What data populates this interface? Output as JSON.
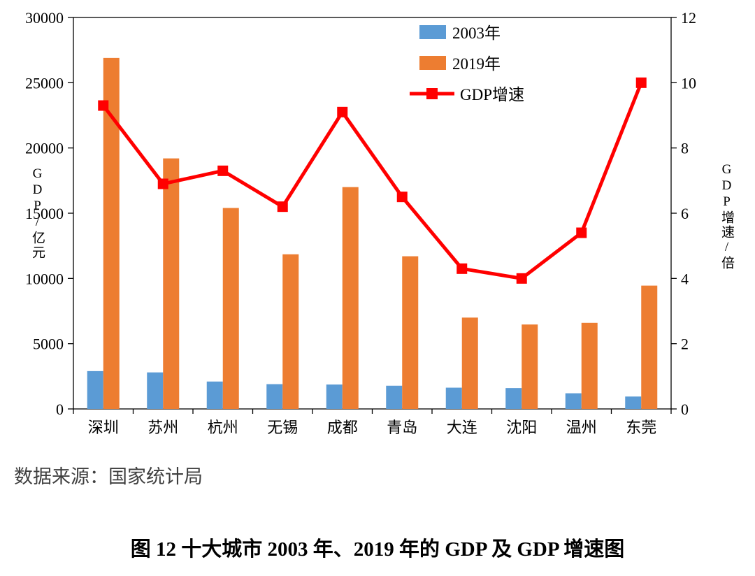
{
  "source_text": "数据来源：国家统计局",
  "caption": "图 12 十大城市 2003 年、2019 年的 GDP 及 GDP 增速图",
  "chart_data": {
    "type": "bar",
    "subtype": "grouped bars with overlaid line on secondary axis",
    "categories": [
      "深圳",
      "苏州",
      "杭州",
      "无锡",
      "成都",
      "青岛",
      "大连",
      "沈阳",
      "温州",
      "东莞"
    ],
    "series": [
      {
        "name": "2003年",
        "type": "bar",
        "axis": "left",
        "color": "#5B9BD5",
        "values": [
          2900,
          2800,
          2100,
          1900,
          1870,
          1780,
          1630,
          1600,
          1200,
          950
        ]
      },
      {
        "name": "2019年",
        "type": "bar",
        "axis": "left",
        "color": "#ED7D31",
        "values": [
          26900,
          19200,
          15400,
          11850,
          17000,
          11700,
          7000,
          6470,
          6600,
          9450
        ]
      },
      {
        "name": "GDP增速",
        "type": "line",
        "axis": "right",
        "color": "#FF0000",
        "values": [
          9.3,
          6.9,
          7.3,
          6.2,
          9.1,
          6.5,
          4.3,
          4.0,
          5.4,
          10.0
        ]
      }
    ],
    "left_axis": {
      "label": "GDP/亿元",
      "min": 0,
      "max": 30000,
      "step": 5000
    },
    "right_axis": {
      "label": "GDP增速/倍",
      "min": 0,
      "max": 12,
      "step": 2
    },
    "legend_position": "top-center-inside",
    "grid": false
  }
}
